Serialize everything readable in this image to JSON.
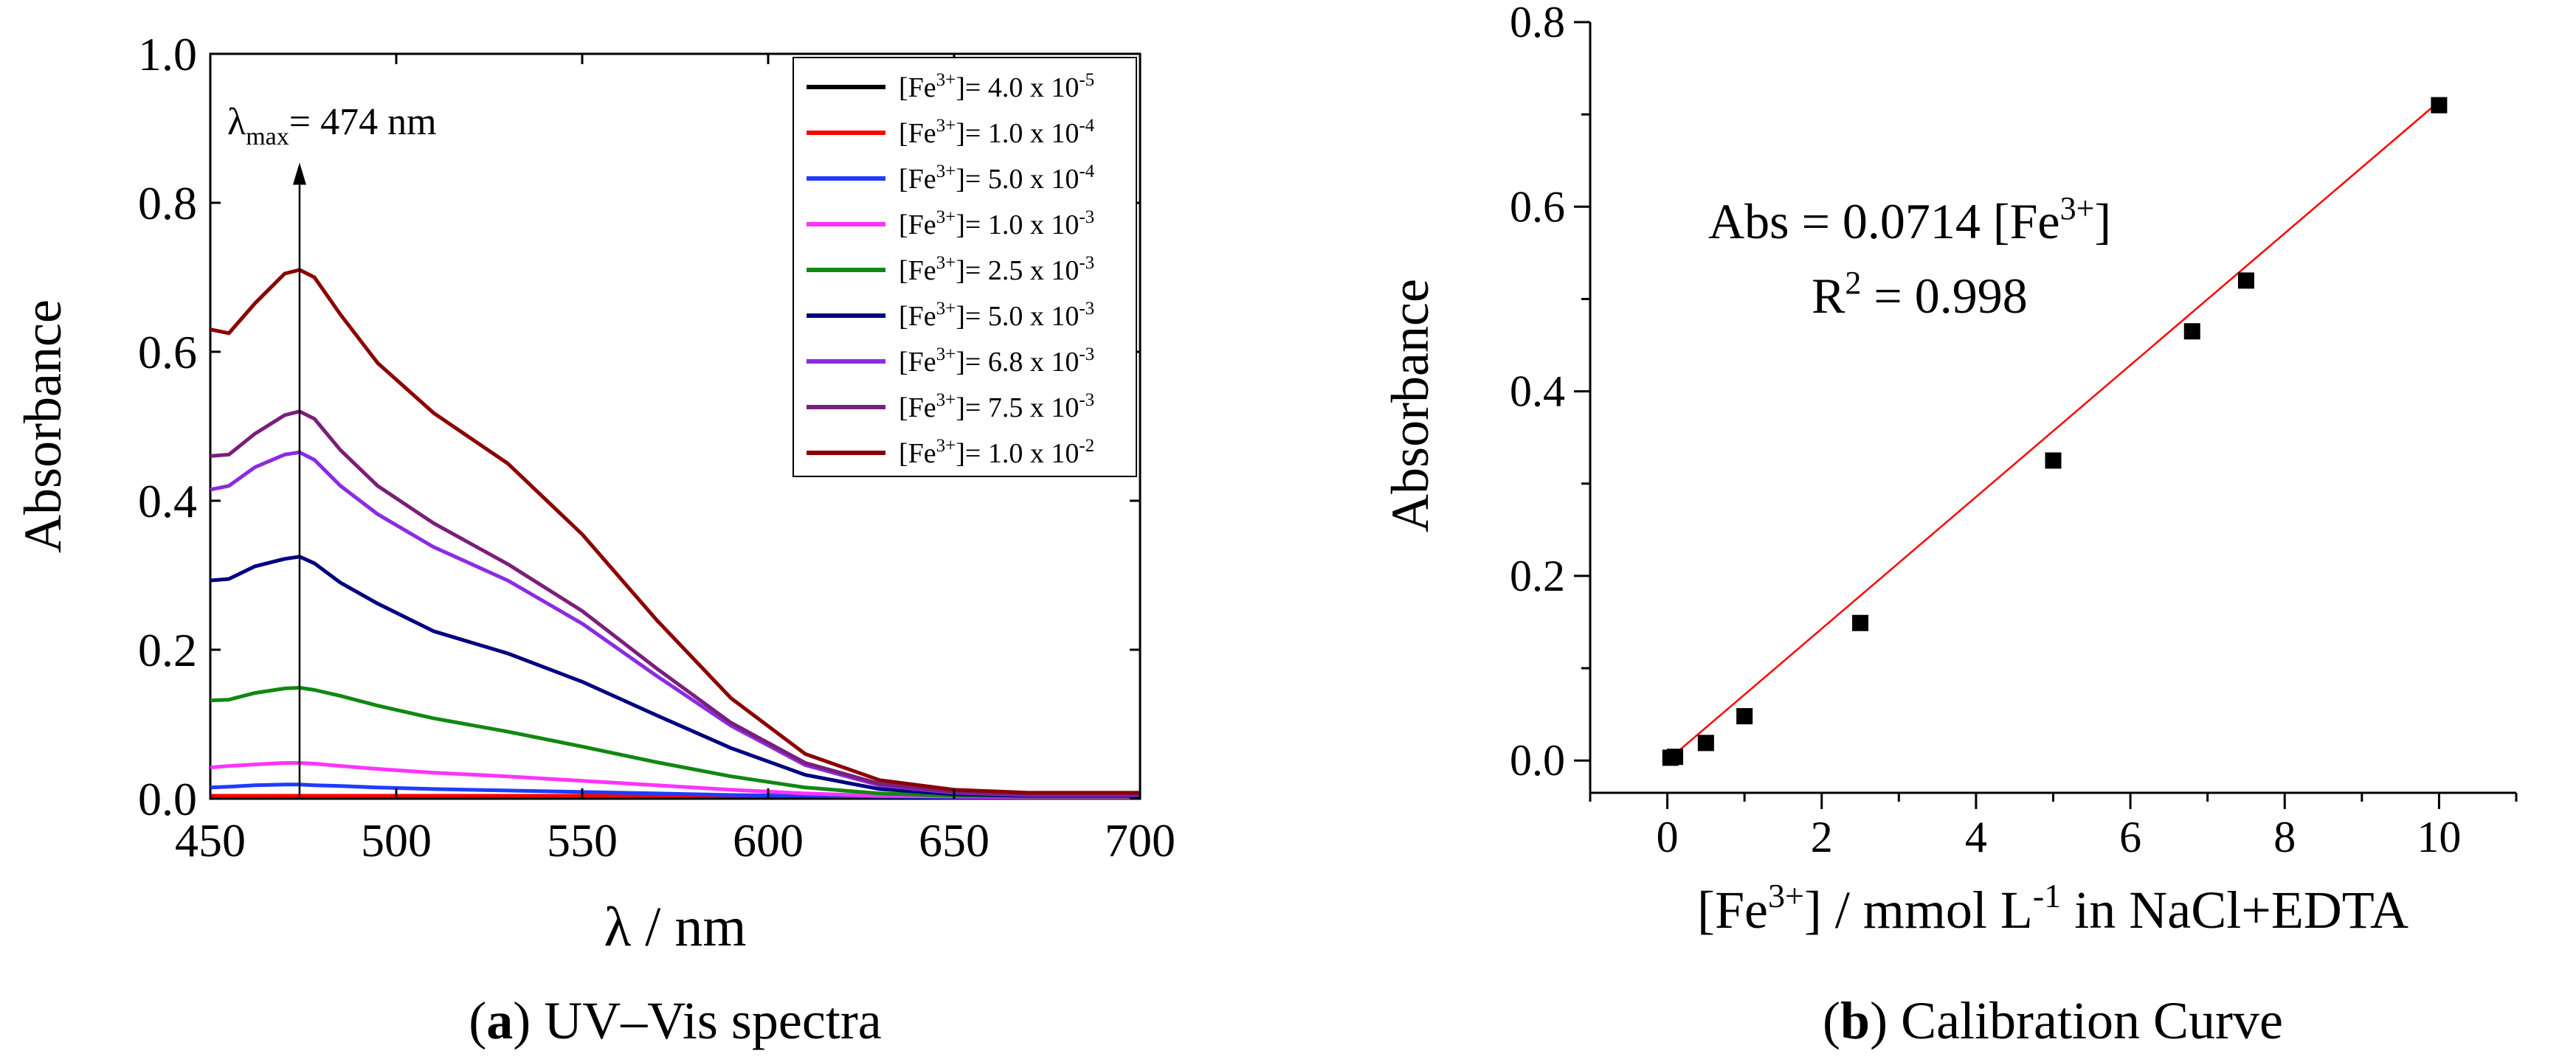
{
  "chart_data": [
    {
      "type": "line",
      "panel": "a",
      "caption_label": "a",
      "caption_text": " UV–Vis spectra",
      "xlabel": "λ / nm",
      "ylabel": "Absorbance",
      "xlim": [
        450,
        700
      ],
      "ylim": [
        0,
        1.0
      ],
      "xticks": [
        450,
        500,
        550,
        600,
        650,
        700
      ],
      "yticks": [
        0.0,
        0.2,
        0.4,
        0.6,
        0.8,
        1.0
      ],
      "xtick_labels": [
        "450",
        "500",
        "550",
        "600",
        "650",
        "700"
      ],
      "ytick_labels": [
        "0.0",
        "0.2",
        "0.4",
        "0.6",
        "0.8",
        "1.0"
      ],
      "annotation": {
        "prefix": "λ",
        "subscript": "max",
        "text": "= 474 nm",
        "x": 474,
        "arrow_from": 0,
        "arrow_to": 0.85
      },
      "legend": {
        "placement": "top-right",
        "prefix": "[Fe",
        "superscript": "3+",
        "mid": "]= "
      },
      "x": [
        450,
        455,
        462,
        470,
        474,
        478,
        485,
        495,
        510,
        530,
        550,
        570,
        590,
        610,
        630,
        650,
        670,
        700
      ],
      "series": [
        {
          "name": "4.0 x 10",
          "exponent": "-5",
          "color": "#000000",
          "values": [
            0.003,
            0.003,
            0.003,
            0.003,
            0.003,
            0.003,
            0.003,
            0.003,
            0.003,
            0.003,
            0.003,
            0.003,
            0.003,
            0.003,
            0.003,
            0.003,
            0.003,
            0.003
          ]
        },
        {
          "name": "1.0 x 10",
          "exponent": "-4",
          "color": "#ff0000",
          "values": [
            0.004,
            0.004,
            0.004,
            0.004,
            0.004,
            0.004,
            0.004,
            0.004,
            0.004,
            0.004,
            0.004,
            0.004,
            0.004,
            0.004,
            0.004,
            0.004,
            0.004,
            0.004
          ]
        },
        {
          "name": "5.0 x 10",
          "exponent": "-4",
          "color": "#1f3cff",
          "values": [
            0.015,
            0.016,
            0.018,
            0.019,
            0.019,
            0.018,
            0.017,
            0.015,
            0.013,
            0.011,
            0.009,
            0.007,
            0.005,
            0.004,
            0.003,
            0.002,
            0.002,
            0.002
          ]
        },
        {
          "name": "1.0 x 10",
          "exponent": "-3",
          "color": "#ff33ff",
          "values": [
            0.042,
            0.044,
            0.046,
            0.048,
            0.048,
            0.047,
            0.044,
            0.04,
            0.035,
            0.03,
            0.024,
            0.018,
            0.012,
            0.007,
            0.004,
            0.003,
            0.002,
            0.002
          ]
        },
        {
          "name": "2.5 x 10",
          "exponent": "-3",
          "color": "#118811",
          "values": [
            0.132,
            0.133,
            0.142,
            0.148,
            0.149,
            0.146,
            0.138,
            0.125,
            0.108,
            0.09,
            0.07,
            0.049,
            0.03,
            0.015,
            0.007,
            0.004,
            0.003,
            0.003
          ]
        },
        {
          "name": "5.0 x 10",
          "exponent": "-3",
          "color": "#000080",
          "values": [
            0.293,
            0.295,
            0.312,
            0.322,
            0.325,
            0.316,
            0.29,
            0.262,
            0.225,
            0.195,
            0.157,
            0.112,
            0.068,
            0.032,
            0.013,
            0.006,
            0.004,
            0.004
          ]
        },
        {
          "name": "6.8 x 10",
          "exponent": "-3",
          "color": "#8b2be2",
          "values": [
            0.415,
            0.42,
            0.445,
            0.462,
            0.465,
            0.455,
            0.42,
            0.382,
            0.338,
            0.293,
            0.235,
            0.165,
            0.098,
            0.045,
            0.018,
            0.008,
            0.005,
            0.005
          ]
        },
        {
          "name": "7.5 x 10",
          "exponent": "-3",
          "color": "#7a1f7a",
          "values": [
            0.46,
            0.462,
            0.49,
            0.515,
            0.52,
            0.51,
            0.468,
            0.42,
            0.37,
            0.315,
            0.252,
            0.175,
            0.102,
            0.048,
            0.02,
            0.009,
            0.006,
            0.006
          ]
        },
        {
          "name": "1.0 x 10",
          "exponent": "-2",
          "color": "#8b0000",
          "values": [
            0.63,
            0.625,
            0.665,
            0.705,
            0.71,
            0.7,
            0.65,
            0.585,
            0.518,
            0.45,
            0.355,
            0.24,
            0.135,
            0.06,
            0.025,
            0.012,
            0.008,
            0.008
          ]
        }
      ]
    },
    {
      "type": "scatter",
      "panel": "b",
      "caption_label": "b",
      "caption_text": " Calibration Curve",
      "ylabel": "Absorbance",
      "xlabel_parts": {
        "a": "[Fe",
        "sup1": "3+",
        "b": "] / mmol L",
        "sup2": "-1",
        "c": " in NaCl+EDTA"
      },
      "xlim": [
        -1,
        11
      ],
      "ylim": [
        -0.035,
        0.8
      ],
      "xticks": [
        0,
        2,
        4,
        6,
        8,
        10
      ],
      "yticks": [
        0.0,
        0.2,
        0.4,
        0.6,
        0.8
      ],
      "xtick_labels": [
        "0",
        "2",
        "4",
        "6",
        "8",
        "10"
      ],
      "ytick_labels": [
        "0.0",
        "0.2",
        "0.4",
        "0.6",
        "0.8"
      ],
      "x": [
        0.04,
        0.1,
        0.5,
        1.0,
        2.5,
        5.0,
        6.8,
        7.5,
        10.0
      ],
      "y": [
        0.003,
        0.004,
        0.019,
        0.048,
        0.149,
        0.325,
        0.465,
        0.52,
        0.71
      ],
      "marker_color": "#000000",
      "fit": {
        "slope": 0.0714,
        "intercept": 0,
        "color": "#ff0000",
        "x_range": [
          0,
          10
        ]
      },
      "equation_parts": {
        "a": "Abs = 0.0714 [Fe",
        "sup": "3+",
        "b": "]"
      },
      "r2_parts": {
        "a": "R",
        "sup": "2",
        "b": " = 0.998"
      }
    }
  ]
}
